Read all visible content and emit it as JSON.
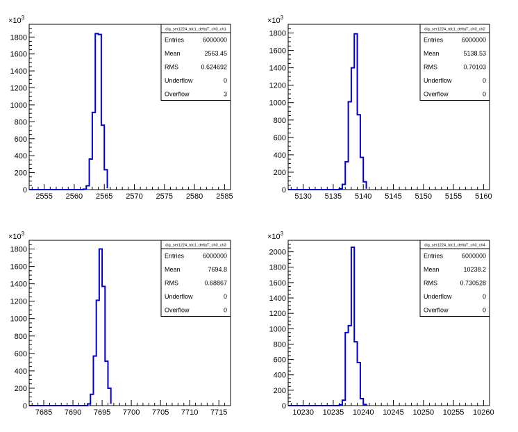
{
  "chart_data": [
    {
      "type": "bar",
      "title": "",
      "stats_title": "dig_ser1224_tdc1_deltaT_ch0_ch1",
      "xlabel": "",
      "ylabel": "",
      "y_multiplier": "10",
      "y_exponent": "3",
      "xlim": [
        2552.5,
        2586
      ],
      "ylim": [
        0,
        1950
      ],
      "x_ticks": [
        2555,
        2560,
        2565,
        2570,
        2575,
        2580,
        2585
      ],
      "y_ticks": [
        0,
        200,
        400,
        600,
        800,
        1000,
        1200,
        1400,
        1600,
        1800
      ],
      "bin_edges": [
        2561.5,
        2562.0,
        2562.5,
        2563.0,
        2563.5,
        2564.0,
        2564.5,
        2565.0,
        2565.5
      ],
      "values": [
        5,
        45,
        360,
        910,
        1840,
        1830,
        760,
        235,
        15
      ],
      "stats": [
        {
          "label": "Entries",
          "value": "6000000"
        },
        {
          "label": "Mean",
          "value": "2563.45"
        },
        {
          "label": "RMS",
          "value": "0.624692"
        },
        {
          "label": "Underflow",
          "value": "0"
        },
        {
          "label": "Overflow",
          "value": "3"
        }
      ]
    },
    {
      "type": "bar",
      "title": "",
      "stats_title": "dig_ser1224_tdc1_deltaT_ch0_ch2",
      "xlabel": "",
      "ylabel": "",
      "y_multiplier": "10",
      "y_exponent": "3",
      "xlim": [
        5127.5,
        5161
      ],
      "ylim": [
        0,
        1900
      ],
      "x_ticks": [
        5130,
        5135,
        5140,
        5145,
        5150,
        5155,
        5160
      ],
      "y_ticks": [
        0,
        200,
        400,
        600,
        800,
        1000,
        1200,
        1400,
        1600,
        1800
      ],
      "bin_edges": [
        5136.0,
        5136.5,
        5137.0,
        5137.5,
        5138.0,
        5138.5,
        5139.0,
        5139.5,
        5140.0,
        5140.5
      ],
      "values": [
        10,
        60,
        320,
        1010,
        1400,
        1790,
        860,
        370,
        90,
        10
      ],
      "stats": [
        {
          "label": "Entries",
          "value": "6000000"
        },
        {
          "label": "Mean",
          "value": "5138.53"
        },
        {
          "label": "RMS",
          "value": "0.70103"
        },
        {
          "label": "Underflow",
          "value": "0"
        },
        {
          "label": "Overflow",
          "value": "0"
        }
      ]
    },
    {
      "type": "bar",
      "title": "",
      "stats_title": "dig_ser1224_tdc1_deltaT_ch0_ch3",
      "xlabel": "",
      "ylabel": "",
      "y_multiplier": "10",
      "y_exponent": "3",
      "xlim": [
        7682.5,
        7717
      ],
      "ylim": [
        0,
        1900
      ],
      "x_ticks": [
        7685,
        7690,
        7695,
        7700,
        7705,
        7710,
        7715
      ],
      "y_ticks": [
        0,
        200,
        400,
        600,
        800,
        1000,
        1200,
        1400,
        1600,
        1800
      ],
      "bin_edges": [
        7692.5,
        7693.0,
        7693.5,
        7694.0,
        7694.5,
        7695.0,
        7695.5,
        7696.0,
        7696.5
      ],
      "values": [
        20,
        130,
        570,
        1210,
        1800,
        1370,
        510,
        200,
        20
      ],
      "stats": [
        {
          "label": "Entries",
          "value": "6000000"
        },
        {
          "label": "Mean",
          "value": "7694.8"
        },
        {
          "label": "RMS",
          "value": "0.68867"
        },
        {
          "label": "Underflow",
          "value": "0"
        },
        {
          "label": "Overflow",
          "value": "0"
        }
      ]
    },
    {
      "type": "bar",
      "title": "",
      "stats_title": "dig_ser1224_tdc1_deltaT_ch0_ch4",
      "xlabel": "",
      "ylabel": "",
      "y_multiplier": "10",
      "y_exponent": "3",
      "xlim": [
        10227.5,
        10261
      ],
      "ylim": [
        0,
        2150
      ],
      "x_ticks": [
        10230,
        10235,
        10240,
        10245,
        10250,
        10255,
        10260
      ],
      "y_ticks": [
        0,
        200,
        400,
        600,
        800,
        1000,
        1200,
        1400,
        1600,
        1800,
        2000
      ],
      "bin_edges": [
        10236.0,
        10236.5,
        10237.0,
        10237.5,
        10238.0,
        10238.5,
        10239.0,
        10239.5,
        10240.0,
        10240.5
      ],
      "values": [
        10,
        70,
        950,
        1040,
        2060,
        830,
        560,
        90,
        15,
        5
      ],
      "stats": [
        {
          "label": "Entries",
          "value": "6000000"
        },
        {
          "label": "Mean",
          "value": "10238.2"
        },
        {
          "label": "RMS",
          "value": "0.730528"
        },
        {
          "label": "Underflow",
          "value": "0"
        },
        {
          "label": "Overflow",
          "value": "0"
        }
      ]
    }
  ]
}
